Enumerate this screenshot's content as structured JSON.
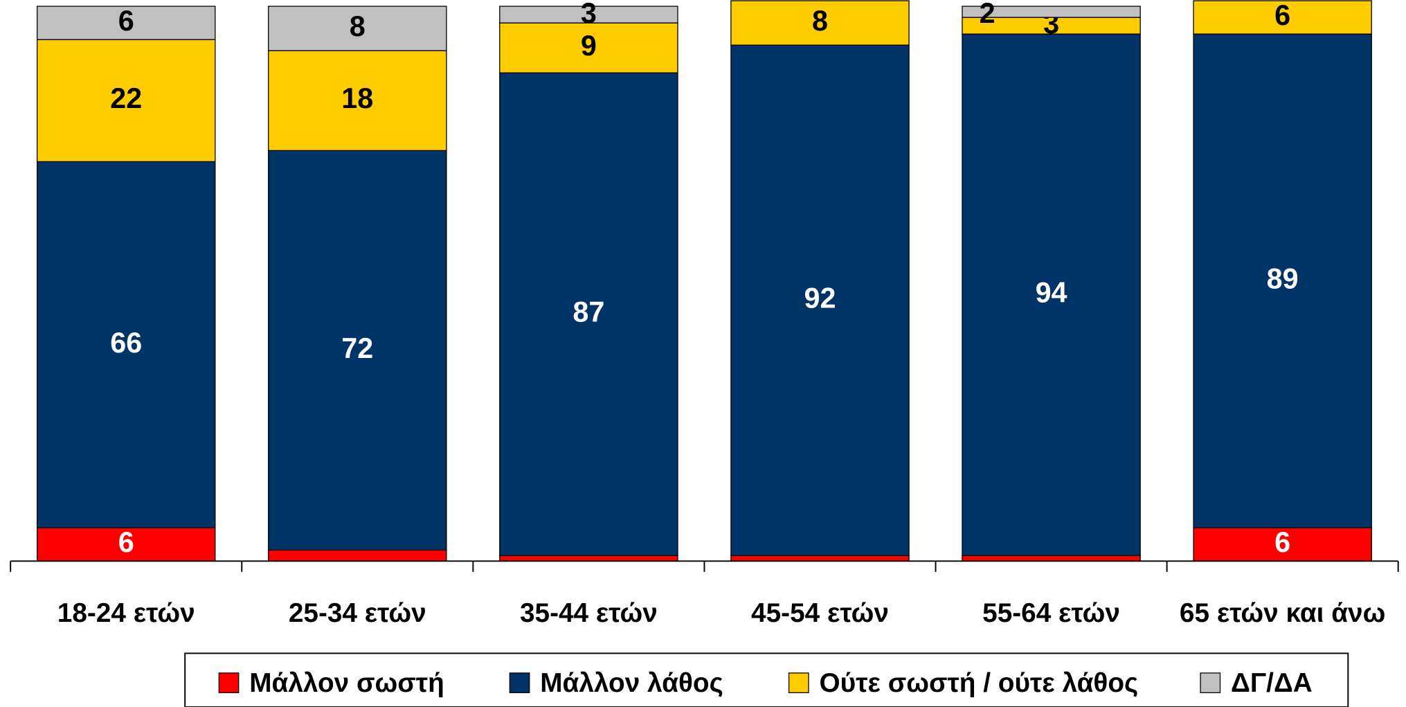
{
  "chart_data": {
    "type": "stacked-bar",
    "categories": [
      "18-24 ετών",
      "25-34 ετών",
      "35-44 ετών",
      "45-54 ετών",
      "55-64 ετών",
      "65 ετών και άνω"
    ],
    "series": [
      {
        "name": "Μάλλον σωστή",
        "color": "#ff0000",
        "values": [
          6,
          2,
          1,
          1,
          1,
          6
        ]
      },
      {
        "name": "Μάλλον λάθος",
        "color": "#003366",
        "values": [
          66,
          72,
          87,
          92,
          94,
          89
        ]
      },
      {
        "name": "Ούτε σωστή / ούτε λάθος",
        "color": "#ffcc00",
        "values": [
          22,
          18,
          9,
          8,
          3,
          6
        ]
      },
      {
        "name": "ΔΓ/ΔΑ",
        "color": "#c0c0c0",
        "values": [
          6,
          8,
          3,
          null,
          2,
          null
        ]
      }
    ],
    "ylim": [
      0,
      100
    ],
    "legend": "bottom"
  }
}
